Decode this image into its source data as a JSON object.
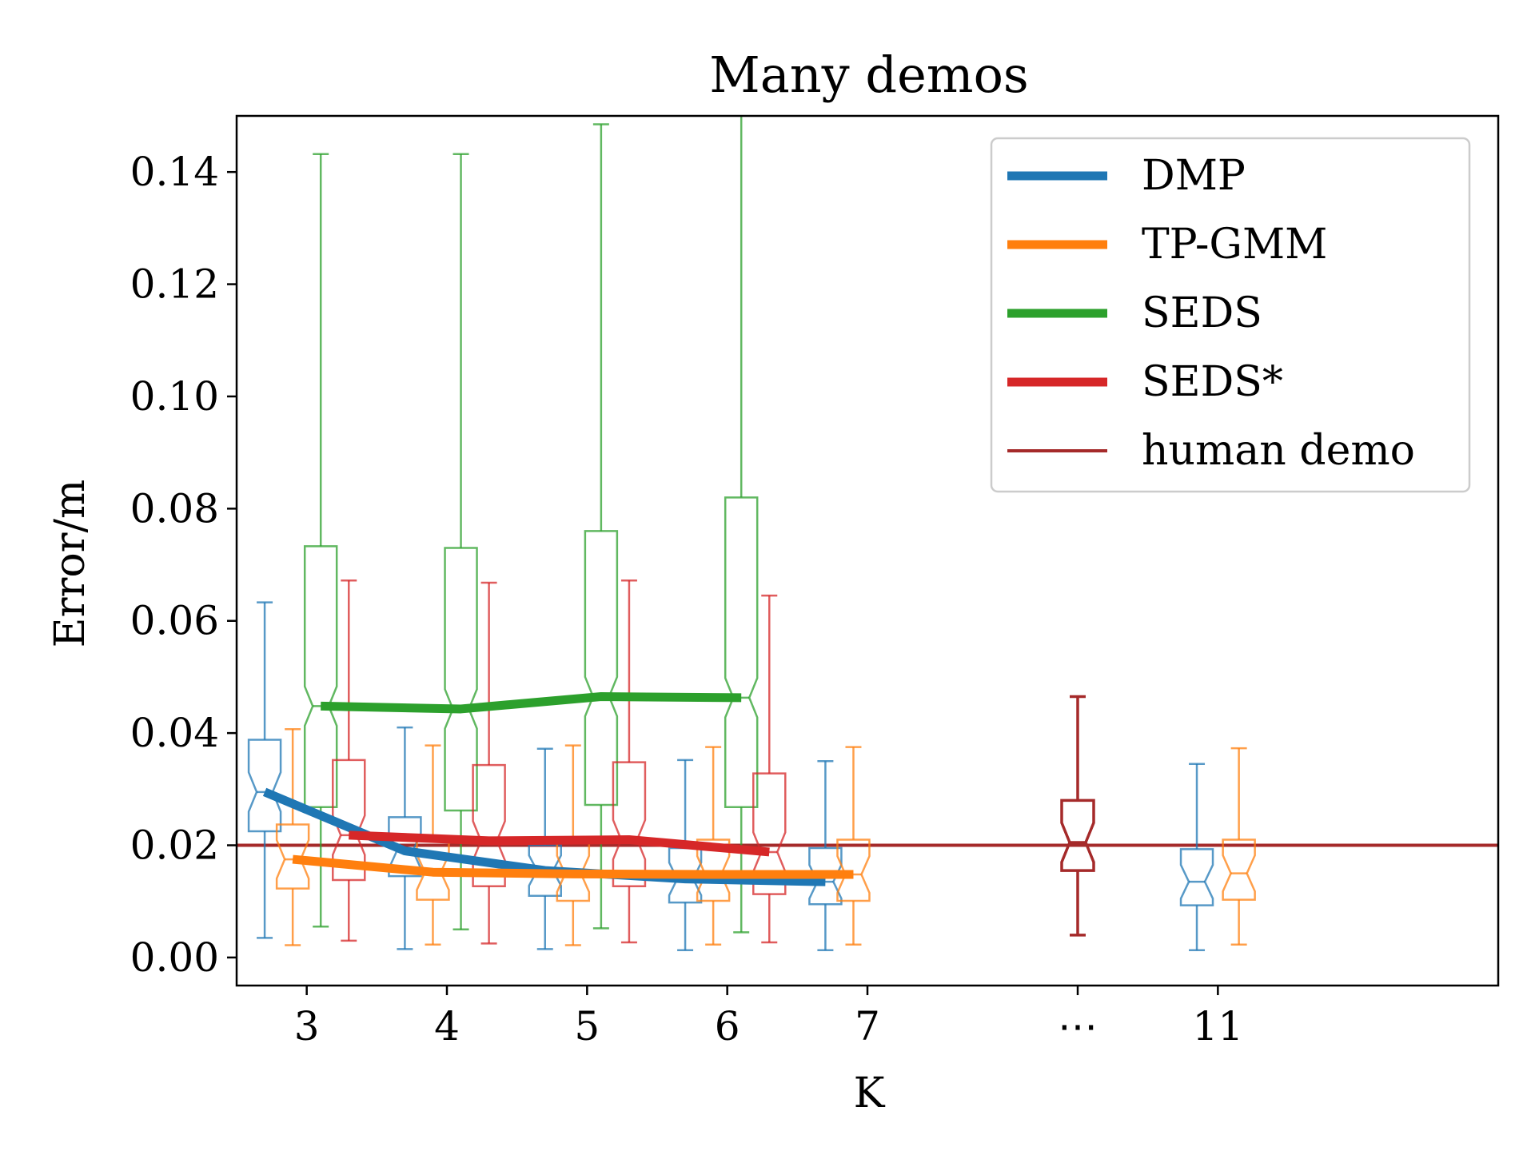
{
  "chart_data": {
    "type": "boxplot",
    "title": "Many demos",
    "xlabel": "K",
    "ylabel": "Error/m",
    "ylim": [
      -0.005,
      0.15
    ],
    "yticks": [
      0.0,
      0.02,
      0.04,
      0.06,
      0.08,
      0.1,
      0.12,
      0.14
    ],
    "ytick_labels": [
      "0.00",
      "0.02",
      "0.04",
      "0.06",
      "0.08",
      "0.10",
      "0.12",
      "0.14"
    ],
    "xlim": [
      2.5,
      11.5
    ],
    "x_positions": [
      3,
      4,
      5,
      6,
      7,
      8.5,
      9.5
    ],
    "x_labels": [
      "3",
      "4",
      "5",
      "6",
      "7",
      "⋯",
      "11"
    ],
    "colors": {
      "DMP": "#1f77b4",
      "TP-GMM": "#ff7f0e",
      "SEDS": "#2ca02c",
      "SEDS*": "#d62728",
      "human demo": "#a52a2a"
    },
    "reference_line": {
      "name": "human demo",
      "y": 0.02
    },
    "series": [
      {
        "name": "DMP",
        "medians_line": {
          "x": [
            2.7,
            3.7,
            4.7,
            5.7,
            6.7
          ],
          "y": [
            0.0295,
            0.019,
            0.0155,
            0.014,
            0.0135
          ]
        },
        "boxes": [
          {
            "x": 2.7,
            "whislo": 0.0035,
            "q1": 0.0225,
            "med": 0.0295,
            "q3": 0.0388,
            "whishi": 0.0633
          },
          {
            "x": 3.7,
            "whislo": 0.0015,
            "q1": 0.0145,
            "med": 0.019,
            "q3": 0.025,
            "whishi": 0.041
          },
          {
            "x": 4.7,
            "whislo": 0.0015,
            "q1": 0.011,
            "med": 0.0155,
            "q3": 0.02,
            "whishi": 0.0372
          },
          {
            "x": 5.7,
            "whislo": 0.0013,
            "q1": 0.0098,
            "med": 0.014,
            "q3": 0.0195,
            "whishi": 0.0352
          },
          {
            "x": 6.7,
            "whislo": 0.0013,
            "q1": 0.0095,
            "med": 0.0135,
            "q3": 0.0195,
            "whishi": 0.035
          },
          {
            "x": 9.35,
            "whislo": 0.0013,
            "q1": 0.0093,
            "med": 0.0135,
            "q3": 0.0193,
            "whishi": 0.0345
          }
        ]
      },
      {
        "name": "TP-GMM",
        "medians_line": {
          "x": [
            2.9,
            3.9,
            4.9,
            5.9,
            6.9
          ],
          "y": [
            0.0175,
            0.0152,
            0.0149,
            0.0148,
            0.0148
          ]
        },
        "boxes": [
          {
            "x": 2.9,
            "whislo": 0.0022,
            "q1": 0.0123,
            "med": 0.0175,
            "q3": 0.0237,
            "whishi": 0.0407
          },
          {
            "x": 3.9,
            "whislo": 0.0023,
            "q1": 0.0103,
            "med": 0.0152,
            "q3": 0.0208,
            "whishi": 0.0378
          },
          {
            "x": 4.9,
            "whislo": 0.0022,
            "q1": 0.0101,
            "med": 0.0149,
            "q3": 0.0208,
            "whishi": 0.0378
          },
          {
            "x": 5.9,
            "whislo": 0.0023,
            "q1": 0.0101,
            "med": 0.0148,
            "q3": 0.021,
            "whishi": 0.0375
          },
          {
            "x": 6.9,
            "whislo": 0.0023,
            "q1": 0.0101,
            "med": 0.0148,
            "q3": 0.021,
            "whishi": 0.0375
          },
          {
            "x": 9.65,
            "whislo": 0.0023,
            "q1": 0.0103,
            "med": 0.015,
            "q3": 0.021,
            "whishi": 0.0373
          }
        ]
      },
      {
        "name": "SEDS",
        "medians_line": {
          "x": [
            3.1,
            4.1,
            5.1,
            6.1
          ],
          "y": [
            0.0448,
            0.0443,
            0.0465,
            0.0463
          ]
        },
        "boxes": [
          {
            "x": 3.1,
            "whislo": 0.0055,
            "q1": 0.0268,
            "med": 0.0448,
            "q3": 0.0733,
            "whishi": 0.1432
          },
          {
            "x": 4.1,
            "whislo": 0.005,
            "q1": 0.0262,
            "med": 0.0443,
            "q3": 0.073,
            "whishi": 0.1432
          },
          {
            "x": 5.1,
            "whislo": 0.0052,
            "q1": 0.0272,
            "med": 0.0465,
            "q3": 0.076,
            "whishi": 0.1485
          },
          {
            "x": 6.1,
            "whislo": 0.0045,
            "q1": 0.0268,
            "med": 0.0463,
            "q3": 0.082,
            "whishi": 0.155
          }
        ]
      },
      {
        "name": "SEDS*",
        "medians_line": {
          "x": [
            3.3,
            4.3,
            5.3,
            6.3
          ],
          "y": [
            0.0218,
            0.0208,
            0.021,
            0.0188
          ]
        },
        "boxes": [
          {
            "x": 3.3,
            "whislo": 0.003,
            "q1": 0.0138,
            "med": 0.0218,
            "q3": 0.0352,
            "whishi": 0.0672
          },
          {
            "x": 4.3,
            "whislo": 0.0025,
            "q1": 0.0127,
            "med": 0.0208,
            "q3": 0.0343,
            "whishi": 0.0668
          },
          {
            "x": 5.3,
            "whislo": 0.0027,
            "q1": 0.0127,
            "med": 0.021,
            "q3": 0.0348,
            "whishi": 0.0672
          },
          {
            "x": 6.3,
            "whislo": 0.0027,
            "q1": 0.0113,
            "med": 0.0188,
            "q3": 0.0328,
            "whishi": 0.0645
          }
        ]
      },
      {
        "name": "human demo",
        "boxes": [
          {
            "x": 8.5,
            "whislo": 0.004,
            "q1": 0.0155,
            "med": 0.0205,
            "q3": 0.028,
            "whishi": 0.0465
          }
        ]
      }
    ],
    "legend": {
      "position": "top-right",
      "entries": [
        "DMP",
        "TP-GMM",
        "SEDS",
        "SEDS*",
        "human demo"
      ]
    }
  }
}
